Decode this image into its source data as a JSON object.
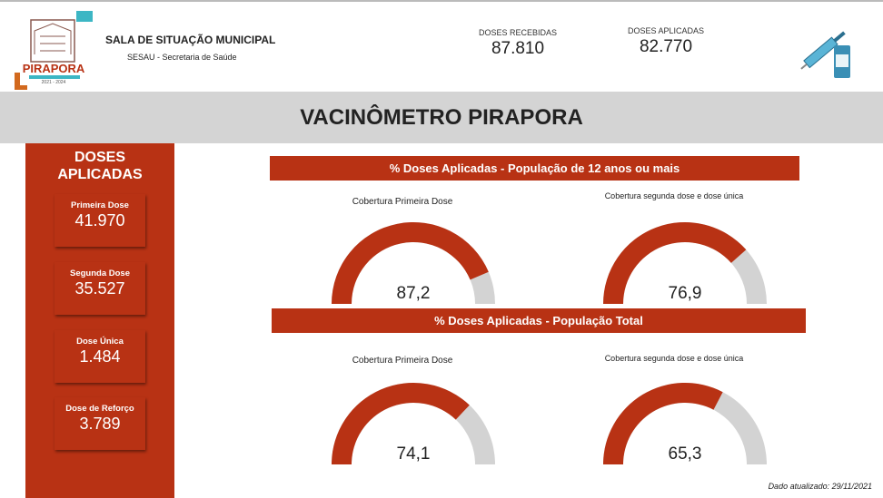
{
  "header": {
    "logo_text": "PIRAPORA",
    "logo_years": "2021 - 2024",
    "title": "SALA DE SITUAÇÃO MUNICIPAL",
    "subtitle": "SESAU - Secretaria de Saúde",
    "stats": [
      {
        "label": "DOSES RECEBIDAS",
        "value": "87.810"
      },
      {
        "label": "DOSES APLICADAS",
        "value": "82.770"
      }
    ]
  },
  "banner": {
    "title": "VACINÔMETRO PIRAPORA"
  },
  "sidebar": {
    "title": "DOSES APLICADAS",
    "cards": [
      {
        "label": "Primeira Dose",
        "value": "41.970"
      },
      {
        "label": "Segunda Dose",
        "value": "35.527"
      },
      {
        "label": "Dose Única",
        "value": "1.484"
      },
      {
        "label": "Dose de Reforço",
        "value": "3.789"
      }
    ]
  },
  "gauge_range": [
    0,
    100
  ],
  "sections": [
    {
      "title": "% Doses Aplicadas - População de 12 anos ou mais",
      "gauges": [
        {
          "title": "Cobertura Primeira Dose",
          "value": 87.2,
          "label": "87,2"
        },
        {
          "title": "Cobertura segunda dose e dose única",
          "value": 76.9,
          "label": "76,9"
        }
      ]
    },
    {
      "title": "% Doses Aplicadas - População Total",
      "gauges": [
        {
          "title": "Cobertura Primeira Dose",
          "value": 74.1,
          "label": "74,1"
        },
        {
          "title": "Cobertura segunda dose e dose única",
          "value": 65.3,
          "label": "65,3"
        }
      ]
    }
  ],
  "footer": {
    "updated": "Dado atualizado: 29/11/2021"
  }
}
